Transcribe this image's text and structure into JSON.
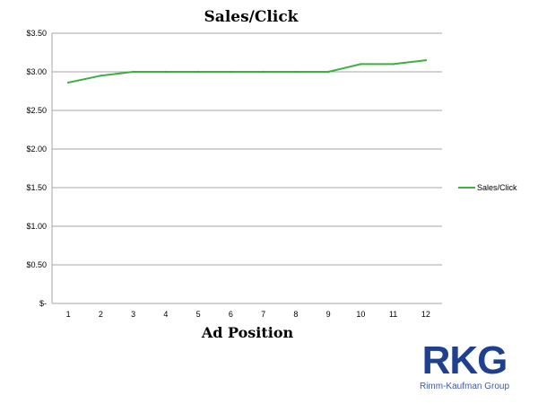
{
  "chart_data": {
    "type": "line",
    "title": "Sales/Click",
    "xlabel": "Ad Position",
    "ylabel": "",
    "categories": [
      "1",
      "2",
      "3",
      "4",
      "5",
      "6",
      "7",
      "8",
      "9",
      "10",
      "11",
      "12"
    ],
    "series": [
      {
        "name": "Sales/Click",
        "values": [
          2.86,
          2.95,
          3.0,
          3.0,
          3.0,
          3.0,
          3.0,
          3.0,
          3.0,
          3.1,
          3.1,
          3.15
        ],
        "color": "#3cb043"
      }
    ],
    "ylim": [
      0,
      3.5
    ],
    "yticks": [
      {
        "value": 0,
        "label": "$-"
      },
      {
        "value": 0.5,
        "label": "$0.50"
      },
      {
        "value": 1.0,
        "label": "$1.00"
      },
      {
        "value": 1.5,
        "label": "$1.50"
      },
      {
        "value": 2.0,
        "label": "$2.00"
      },
      {
        "value": 2.5,
        "label": "$2.50"
      },
      {
        "value": 3.0,
        "label": "$3.00"
      },
      {
        "value": 3.5,
        "label": "$3.50"
      }
    ],
    "grid": true,
    "gridColor": "#a6a6a6",
    "legend": "right"
  },
  "logo": {
    "mark": "RKG",
    "sub": "Rimm-Kaufman Group",
    "color": "#1f3f8f"
  }
}
